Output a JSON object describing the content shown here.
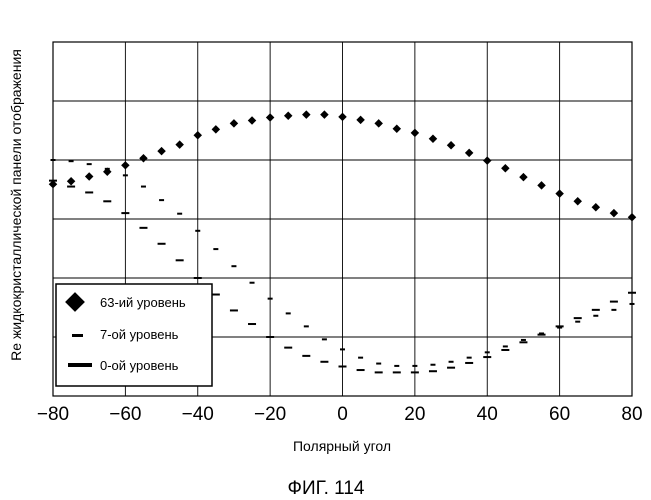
{
  "figure_caption": "ФИГ. 114",
  "chart_data": {
    "type": "scatter",
    "title": "",
    "xlabel": "Полярный угол",
    "ylabel": "Re жидкокристаллической панели отображения",
    "xlim": [
      -80,
      80
    ],
    "ylim": [
      0,
      6
    ],
    "x_ticks": [
      -80,
      -60,
      -40,
      -20,
      0,
      20,
      40,
      60,
      80
    ],
    "x_tick_labels": [
      "−80",
      "−60",
      "−40",
      "−20",
      "0",
      "20",
      "40",
      "60",
      "80"
    ],
    "y_tick_labels_shown": false,
    "grid": true,
    "legend_position": "bottom-left",
    "series": [
      {
        "name": "63-ий уровень",
        "marker": "diamond",
        "x": [
          -80,
          -75,
          -70,
          -65,
          -60,
          -55,
          -50,
          -45,
          -40,
          -35,
          -30,
          -25,
          -20,
          -15,
          -10,
          -5,
          0,
          5,
          10,
          15,
          20,
          25,
          30,
          35,
          40,
          45,
          50,
          55,
          60,
          65,
          70,
          75,
          80
        ],
        "y": [
          3.59,
          3.64,
          3.72,
          3.8,
          3.91,
          4.03,
          4.15,
          4.26,
          4.42,
          4.52,
          4.62,
          4.67,
          4.72,
          4.75,
          4.77,
          4.77,
          4.73,
          4.68,
          4.62,
          4.53,
          4.46,
          4.36,
          4.25,
          4.12,
          3.99,
          3.86,
          3.71,
          3.57,
          3.43,
          3.3,
          3.2,
          3.1,
          3.03
        ]
      },
      {
        "name": "7-ой уровень",
        "marker": "short-dash",
        "x": [
          -80,
          -75,
          -70,
          -65,
          -60,
          -55,
          -50,
          -45,
          -40,
          -35,
          -30,
          -25,
          -20,
          -15,
          -10,
          -5,
          0,
          5,
          10,
          15,
          20,
          25,
          30,
          35,
          40,
          45,
          50,
          55,
          60,
          65,
          70,
          75,
          80
        ],
        "y": [
          4.0,
          3.98,
          3.93,
          3.85,
          3.74,
          3.55,
          3.32,
          3.09,
          2.8,
          2.49,
          2.2,
          1.92,
          1.65,
          1.4,
          1.18,
          0.96,
          0.79,
          0.65,
          0.55,
          0.51,
          0.51,
          0.53,
          0.58,
          0.65,
          0.74,
          0.84,
          0.95,
          1.06,
          1.16,
          1.26,
          1.36,
          1.46,
          1.56
        ]
      },
      {
        "name": "0-ой уровень",
        "marker": "long-dash",
        "x": [
          -80,
          -75,
          -70,
          -65,
          -60,
          -55,
          -50,
          -45,
          -40,
          -35,
          -30,
          -25,
          -20,
          -15,
          -10,
          -5,
          0,
          5,
          10,
          15,
          20,
          25,
          30,
          35,
          40,
          45,
          50,
          55,
          60,
          65,
          70,
          75,
          80
        ],
        "y": [
          3.65,
          3.55,
          3.45,
          3.3,
          3.1,
          2.85,
          2.58,
          2.3,
          2.0,
          1.72,
          1.45,
          1.22,
          1.0,
          0.82,
          0.68,
          0.58,
          0.5,
          0.44,
          0.4,
          0.4,
          0.4,
          0.42,
          0.48,
          0.56,
          0.66,
          0.78,
          0.91,
          1.04,
          1.18,
          1.32,
          1.46,
          1.6,
          1.75
        ]
      }
    ]
  }
}
